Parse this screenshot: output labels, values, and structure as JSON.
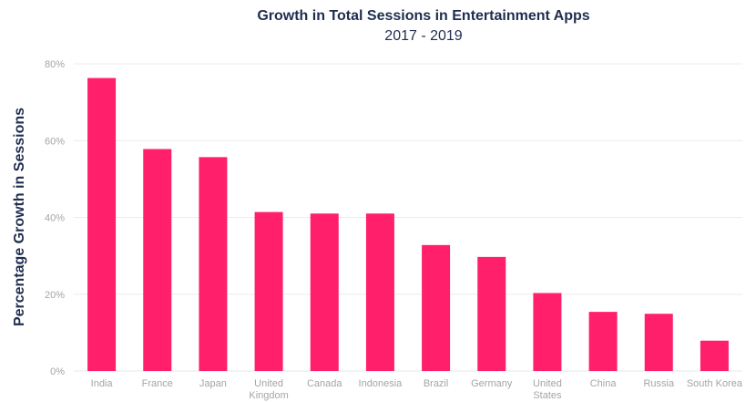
{
  "chart_data": {
    "type": "bar",
    "title": "Growth in Total Sessions in Entertainment Apps",
    "subtitle": "2017 - 2019",
    "xlabel": "",
    "ylabel": "Percentage Growth in Sessions",
    "ylim": [
      0,
      80
    ],
    "yticks": [
      "0%",
      "20%",
      "40%",
      "60%",
      "80%"
    ],
    "categories": [
      "India",
      "France",
      "Japan",
      "United Kingdom",
      "Canada",
      "Indonesia",
      "Brazil",
      "Germany",
      "United States",
      "China",
      "Russia",
      "South Korea"
    ],
    "category_lines": [
      [
        "India"
      ],
      [
        "France"
      ],
      [
        "Japan"
      ],
      [
        "United",
        "Kingdom"
      ],
      [
        "Canada"
      ],
      [
        "Indonesia"
      ],
      [
        "Brazil"
      ],
      [
        "Germany"
      ],
      [
        "United",
        "States"
      ],
      [
        "China"
      ],
      [
        "Russia"
      ],
      [
        "South Korea"
      ]
    ],
    "values": [
      76.3,
      57.8,
      55.7,
      41.4,
      41.0,
      41.0,
      32.8,
      29.7,
      20.3,
      15.4,
      14.9,
      7.9
    ],
    "grid": true,
    "colors": {
      "bar": "#ff1f6b",
      "grid": "#ececec",
      "tick_text": "#a5a5a5",
      "title_text": "#1f2d4f"
    }
  }
}
